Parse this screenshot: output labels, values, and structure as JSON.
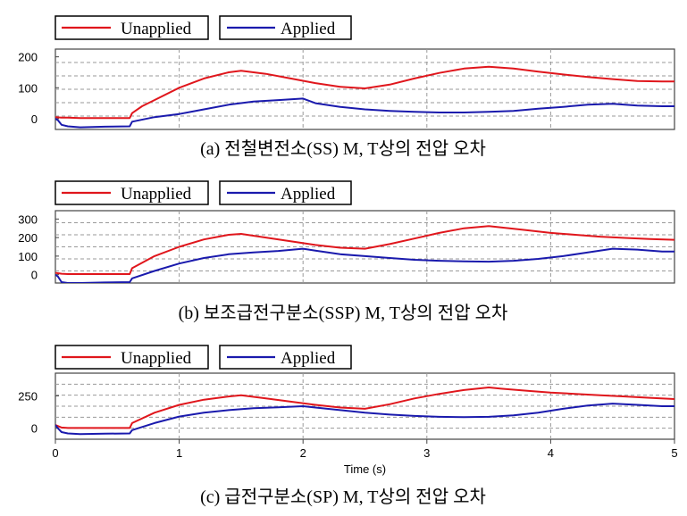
{
  "colors": {
    "unapplied": "#e0161c",
    "applied": "#1a1aad"
  },
  "chart_data": [
    {
      "type": "line",
      "caption": "(a) 전철변전소(SS) M, T상의 전압 오차",
      "xlim": [
        0,
        5
      ],
      "ylim": [
        -35,
        225
      ],
      "yticks": [
        0,
        100,
        200
      ],
      "legend": [
        "Unapplied",
        "Applied"
      ],
      "grid": true,
      "series": [
        {
          "name": "Unapplied",
          "color": "#e0161c",
          "x": [
            0,
            0.05,
            0.1,
            0.2,
            0.6,
            0.62,
            0.7,
            0.8,
            1.0,
            1.2,
            1.4,
            1.5,
            1.7,
            1.9,
            2.1,
            2.3,
            2.5,
            2.7,
            2.9,
            3.1,
            3.3,
            3.5,
            3.7,
            3.9,
            4.1,
            4.3,
            4.5,
            4.7,
            4.9,
            5.0
          ],
          "y": [
            5,
            3,
            3,
            2,
            2,
            18,
            40,
            60,
            100,
            130,
            150,
            155,
            145,
            130,
            115,
            103,
            98,
            110,
            130,
            148,
            162,
            168,
            162,
            152,
            143,
            135,
            128,
            122,
            120,
            120
          ]
        },
        {
          "name": "Applied",
          "color": "#1a1aad",
          "x": [
            0,
            0.02,
            0.05,
            0.1,
            0.2,
            0.3,
            0.4,
            0.6,
            0.62,
            0.8,
            1.0,
            1.2,
            1.4,
            1.6,
            1.8,
            2.0,
            2.1,
            2.3,
            2.5,
            2.7,
            2.9,
            3.1,
            3.3,
            3.5,
            3.7,
            3.9,
            4.1,
            4.3,
            4.5,
            4.7,
            4.9,
            5.0
          ],
          "y": [
            0,
            -5,
            -20,
            -25,
            -28,
            -27,
            -26,
            -25,
            -10,
            5,
            15,
            30,
            45,
            55,
            60,
            65,
            50,
            38,
            30,
            25,
            22,
            20,
            20,
            22,
            25,
            32,
            38,
            45,
            48,
            42,
            40,
            40
          ]
        }
      ]
    },
    {
      "type": "line",
      "caption": "(b) 보조급전구분소(SSP) M, T상의 전압 오차",
      "xlim": [
        0,
        5
      ],
      "ylim": [
        -45,
        345
      ],
      "yticks": [
        0,
        100,
        200,
        300
      ],
      "legend": [
        "Unapplied",
        "Applied"
      ],
      "grid": true,
      "series": [
        {
          "name": "Unapplied",
          "color": "#e0161c",
          "x": [
            0,
            0.05,
            0.1,
            0.3,
            0.6,
            0.62,
            0.8,
            1.0,
            1.2,
            1.4,
            1.5,
            1.7,
            1.9,
            2.1,
            2.3,
            2.5,
            2.7,
            2.9,
            3.1,
            3.3,
            3.5,
            3.6,
            3.8,
            4.0,
            4.2,
            4.4,
            4.6,
            4.8,
            5.0
          ],
          "y": [
            10,
            5,
            3,
            3,
            3,
            35,
            100,
            150,
            190,
            215,
            220,
            200,
            180,
            160,
            145,
            140,
            165,
            195,
            225,
            250,
            262,
            255,
            240,
            225,
            215,
            205,
            198,
            192,
            188
          ]
        },
        {
          "name": "Applied",
          "color": "#1a1aad",
          "x": [
            0,
            0.02,
            0.05,
            0.1,
            0.2,
            0.4,
            0.6,
            0.62,
            0.8,
            1.0,
            1.2,
            1.4,
            1.6,
            1.8,
            2.0,
            2.1,
            2.3,
            2.5,
            2.7,
            2.9,
            3.1,
            3.3,
            3.5,
            3.7,
            3.9,
            4.1,
            4.3,
            4.5,
            4.7,
            4.9,
            5.0
          ],
          "y": [
            0,
            -10,
            -40,
            -45,
            -45,
            -42,
            -40,
            -20,
            20,
            60,
            90,
            110,
            120,
            128,
            140,
            130,
            110,
            100,
            90,
            80,
            75,
            72,
            70,
            75,
            85,
            100,
            120,
            140,
            135,
            125,
            125
          ]
        }
      ]
    },
    {
      "type": "line",
      "caption": "(c) 급전구분소(SP) M, T상의 전압 오차",
      "xlim": [
        0,
        5
      ],
      "ylim": [
        -85,
        425
      ],
      "yticks": [
        0,
        250
      ],
      "xticks": [
        0,
        1,
        2,
        3,
        4,
        5
      ],
      "xlabel": "Time (s)",
      "legend": [
        "Unapplied",
        "Applied"
      ],
      "grid": true,
      "series": [
        {
          "name": "Unapplied",
          "color": "#e0161c",
          "x": [
            0,
            0.05,
            0.1,
            0.3,
            0.6,
            0.62,
            0.8,
            1.0,
            1.2,
            1.4,
            1.5,
            1.7,
            1.9,
            2.1,
            2.3,
            2.5,
            2.7,
            2.9,
            3.1,
            3.3,
            3.5,
            3.6,
            3.8,
            4.0,
            4.2,
            4.4,
            4.6,
            4.8,
            5.0
          ],
          "y": [
            25,
            5,
            2,
            2,
            2,
            40,
            120,
            180,
            220,
            245,
            255,
            230,
            205,
            180,
            160,
            150,
            185,
            230,
            265,
            295,
            315,
            305,
            290,
            275,
            265,
            255,
            245,
            235,
            225
          ]
        },
        {
          "name": "Applied",
          "color": "#1a1aad",
          "x": [
            0,
            0.02,
            0.05,
            0.1,
            0.2,
            0.4,
            0.6,
            0.62,
            0.8,
            1.0,
            1.2,
            1.4,
            1.6,
            1.8,
            2.0,
            2.1,
            2.3,
            2.5,
            2.7,
            2.9,
            3.1,
            3.3,
            3.5,
            3.7,
            3.9,
            4.1,
            4.3,
            4.5,
            4.7,
            4.9,
            5.0
          ],
          "y": [
            25,
            0,
            -30,
            -40,
            -45,
            -42,
            -40,
            -15,
            40,
            90,
            120,
            140,
            155,
            162,
            170,
            160,
            140,
            120,
            105,
            95,
            88,
            85,
            88,
            100,
            120,
            150,
            175,
            190,
            180,
            170,
            170
          ]
        }
      ]
    }
  ]
}
